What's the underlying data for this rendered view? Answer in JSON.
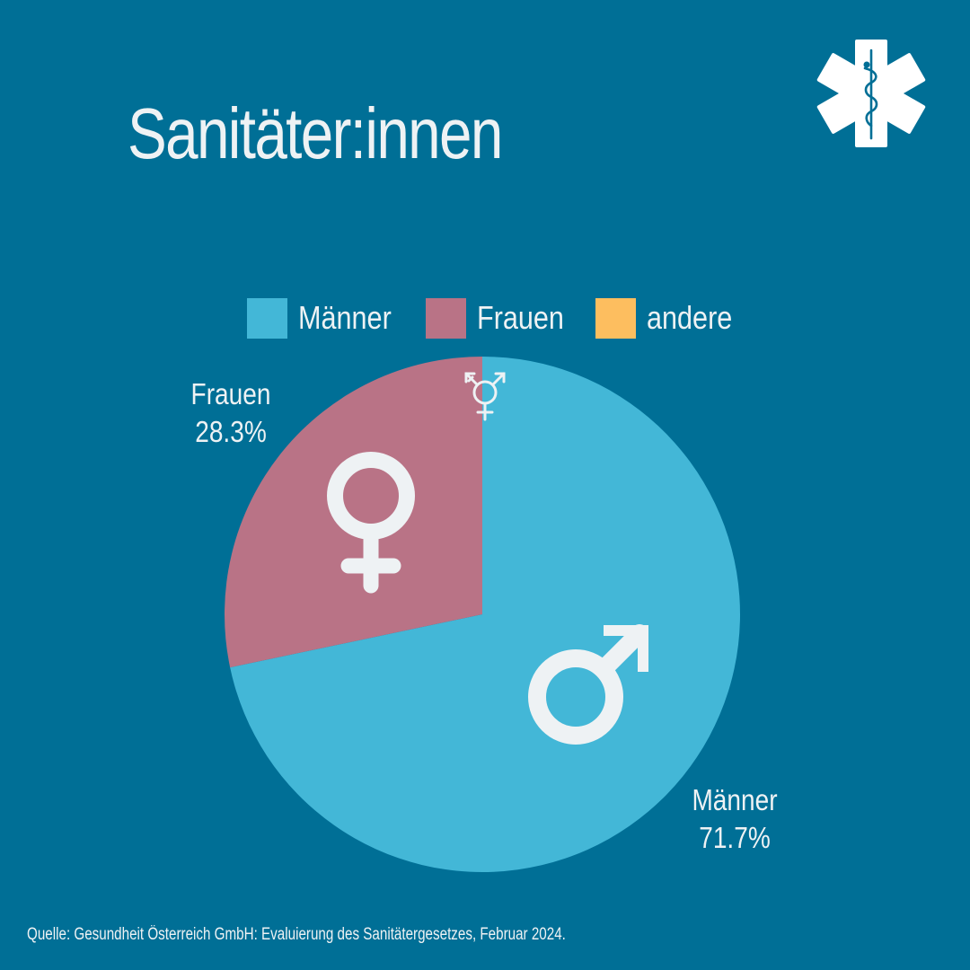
{
  "title": "Sanitäter:innen",
  "source": "Quelle: Gesundheit Österreich GmbH: Evaluierung des Sanitätergesetzes, Februar 2024.",
  "colors": {
    "background": "#006f96",
    "maenner": "#43b7d7",
    "frauen": "#b97386",
    "andere": "#fdbe5f",
    "text": "#eef2f4"
  },
  "icons": [
    "star-of-life-icon",
    "female-symbol-icon",
    "male-symbol-icon",
    "transgender-symbol-icon"
  ],
  "chart_data": {
    "type": "pie",
    "title": "Sanitäter:innen",
    "legend_placement": "top",
    "legend": [
      {
        "label": "Männer",
        "color": "#43b7d7"
      },
      {
        "label": "Frauen",
        "color": "#b97386"
      },
      {
        "label": "andere",
        "color": "#fdbe5f"
      }
    ],
    "slices": [
      {
        "name": "Männer",
        "value": 71.7,
        "label": "Männer",
        "value_label": "71.7%",
        "color": "#43b7d7"
      },
      {
        "name": "Frauen",
        "value": 28.3,
        "label": "Frauen",
        "value_label": "28.3%",
        "color": "#b97386"
      }
    ]
  }
}
